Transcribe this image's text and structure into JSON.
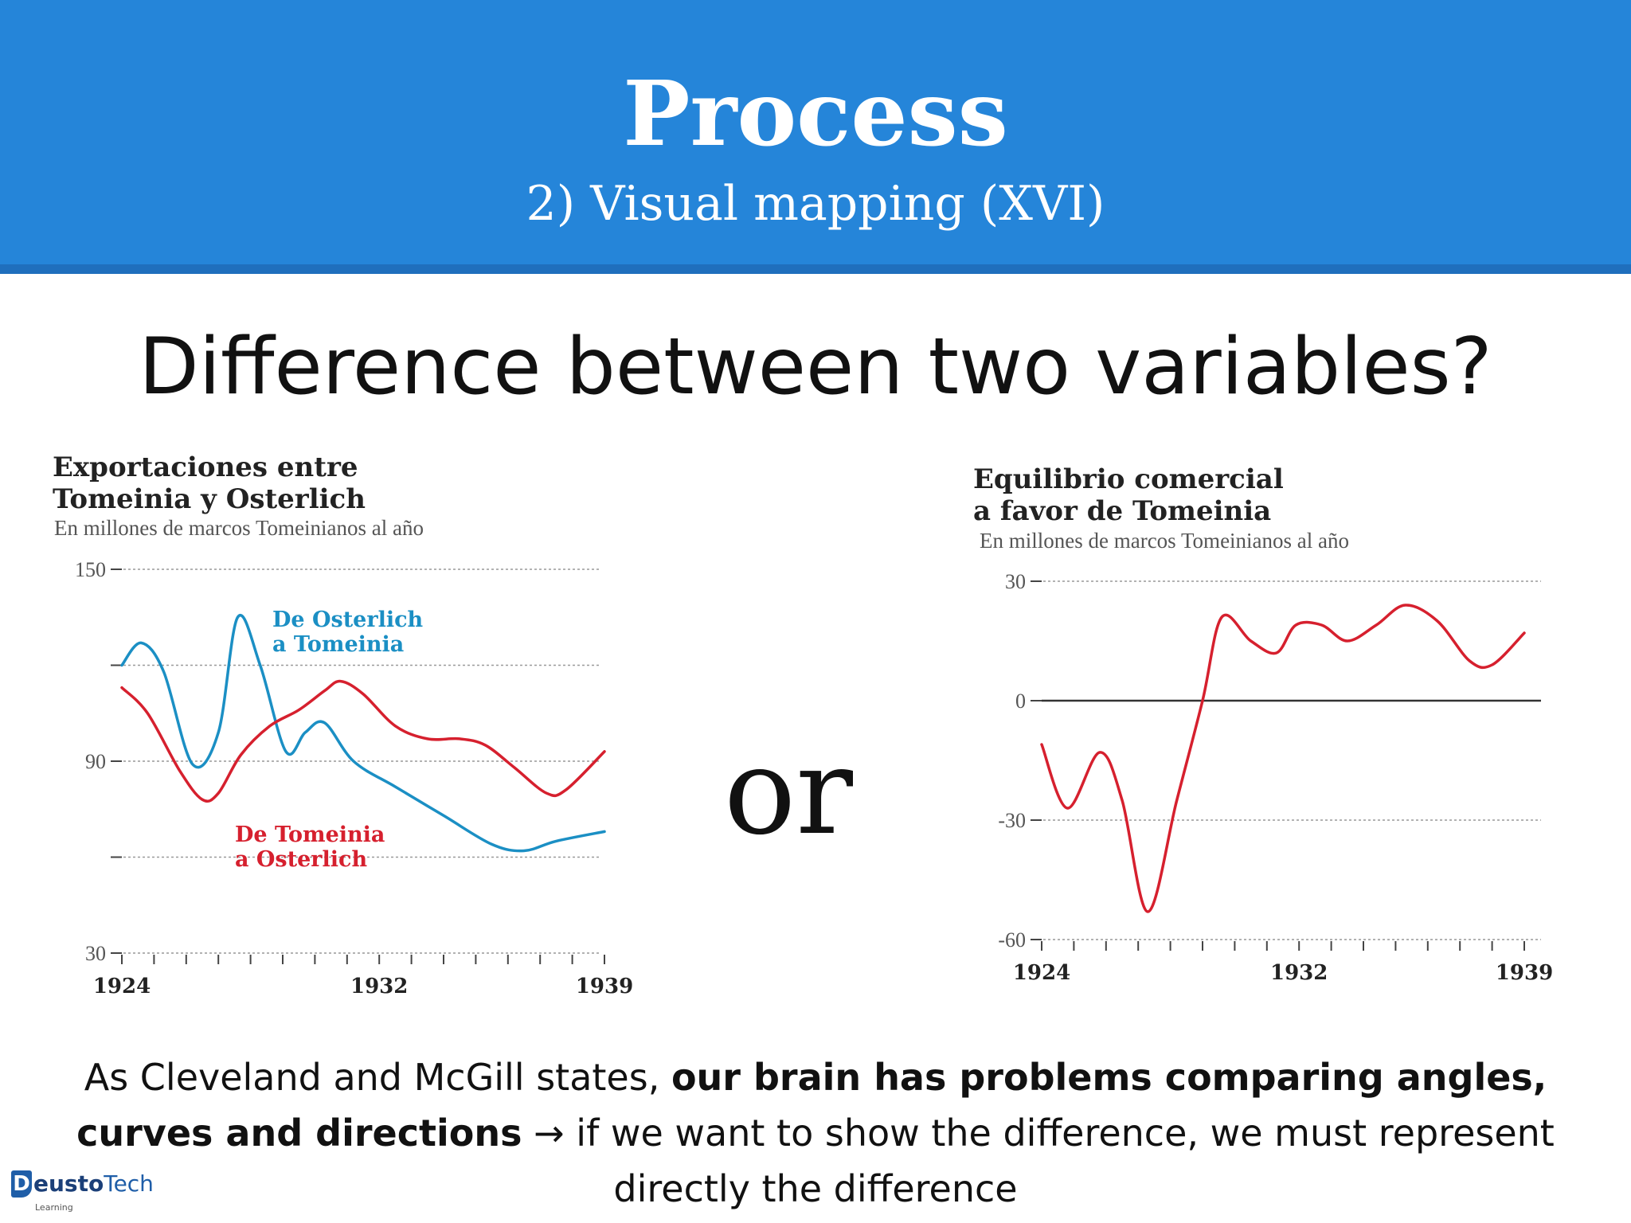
{
  "header": {
    "title": "Process",
    "subtitle": "2) Visual mapping (XVI)"
  },
  "question": "Difference between two variables?",
  "or_word": "or",
  "caption": {
    "part1": "As Cleveland and McGill states, ",
    "bold1": "our brain has problems comparing angles,",
    "bold2": "curves and directions",
    "part2": " → if we want to show the difference, we must represent directly the difference"
  },
  "logo": {
    "mark": "D",
    "text_bold": "eusto",
    "text_rest": "Tech",
    "small": "Learning"
  },
  "chart_data": [
    {
      "type": "line",
      "title_line1": "Exportaciones entre",
      "title_line2": "Tomeinia y Osterlich",
      "subtitle": "En millones de marcos Tomeinianos al año",
      "ylim": [
        30,
        150
      ],
      "yticks": [
        150,
        120,
        90,
        60,
        30
      ],
      "ytick_labels": [
        "150",
        "",
        "90",
        "",
        "30"
      ],
      "xlim": [
        1924,
        1939
      ],
      "xtick_labels": [
        "1924",
        "1932",
        "1939"
      ],
      "xtick_values": [
        1924,
        1932,
        1939
      ],
      "grid": true,
      "series": [
        {
          "name": "De Osterlich a Tomeinia",
          "label_line1": "De Osterlich",
          "label_line2": "a Tomeinia",
          "color": "#1b8fc4",
          "x": [
            1924,
            1924.6,
            1925.3,
            1926.2,
            1927.0,
            1927.6,
            1928.3,
            1929.1,
            1929.7,
            1930.3,
            1931.2,
            1932.5,
            1934.0,
            1935.5,
            1936.5,
            1937.5,
            1939.0
          ],
          "y": [
            120,
            127,
            118,
            89,
            99,
            135,
            120,
            93,
            99,
            102,
            90,
            82,
            73,
            64,
            62,
            65,
            68
          ]
        },
        {
          "name": "De Tomeinia a Osterlich",
          "label_line1": "De Tomeinia",
          "label_line2": "a Osterlich",
          "color": "#d6202e",
          "x": [
            1924,
            1924.8,
            1925.8,
            1926.5,
            1927.0,
            1927.7,
            1928.6,
            1929.5,
            1930.3,
            1930.8,
            1931.5,
            1932.5,
            1933.5,
            1934.5,
            1935.3,
            1936.2,
            1937.2,
            1937.8,
            1939.0
          ],
          "y": [
            113,
            105,
            87,
            78,
            80,
            92,
            101,
            106,
            112,
            115,
            111,
            101,
            97,
            97,
            95,
            88,
            80,
            81,
            93
          ]
        }
      ]
    },
    {
      "type": "line",
      "title_line1": "Equilibrio comercial",
      "title_line2": "a favor de Tomeinia",
      "subtitle": "En millones de marcos Tomeinianos al año",
      "ylim": [
        -60,
        30
      ],
      "yticks": [
        30,
        0,
        -30,
        -60
      ],
      "ytick_labels": [
        "30",
        "0",
        "-30",
        "-60"
      ],
      "xlim": [
        1924,
        1939
      ],
      "xtick_labels": [
        "1924",
        "1932",
        "1939"
      ],
      "xtick_values": [
        1924,
        1932,
        1939
      ],
      "grid": true,
      "series": [
        {
          "name": "Equilibrio comercial",
          "color": "#d6202e",
          "x": [
            1924,
            1924.8,
            1925.8,
            1926.5,
            1927.3,
            1928.2,
            1929.0,
            1929.6,
            1930.5,
            1931.3,
            1931.9,
            1932.7,
            1933.5,
            1934.4,
            1935.3,
            1936.3,
            1937.3,
            1938.0,
            1939.0
          ],
          "y": [
            -11,
            -27,
            -13,
            -25,
            -53,
            -25,
            0,
            21,
            15,
            12,
            19,
            19,
            15,
            19,
            24,
            20,
            10,
            9,
            17
          ]
        }
      ]
    }
  ]
}
